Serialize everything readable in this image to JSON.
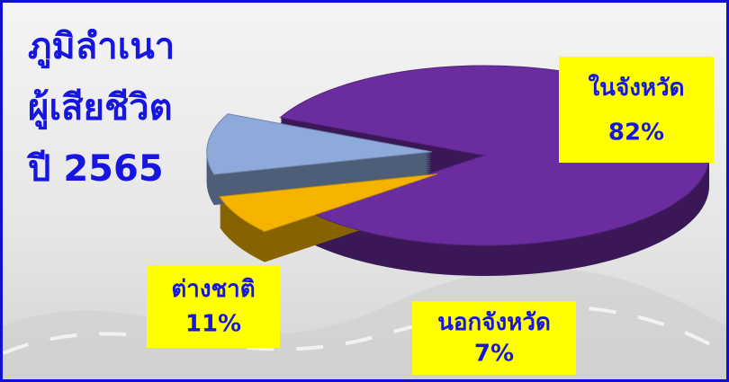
{
  "chart_data": {
    "type": "pie",
    "title": [
      "ภูมิลำเนา",
      "ผู้เสียชีวิต",
      "ปี 2565"
    ],
    "categories": [
      "ในจังหวัด",
      "นอกจังหวัด",
      "ต่างชาติ"
    ],
    "values": [
      82,
      7,
      11
    ],
    "value_labels": [
      "82%",
      "7%",
      "11%"
    ],
    "colors": [
      "#6a2c9e",
      "#f5b400",
      "#8eaadb"
    ]
  }
}
